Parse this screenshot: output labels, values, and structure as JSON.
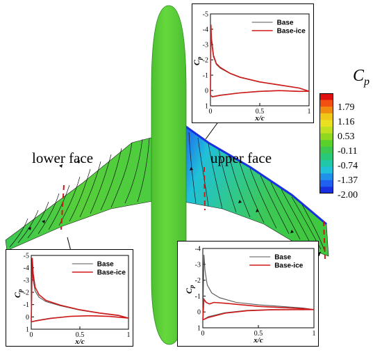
{
  "labels": {
    "lower_face": "lower face",
    "upper_face": "upper face"
  },
  "colorbar": {
    "title": "C",
    "title_sub": "p",
    "ticks": [
      "1.79",
      "1.16",
      "0.53",
      "-0.11",
      "-0.74",
      "-1.37",
      "-2.00"
    ],
    "colors": [
      "#e01010",
      "#f05010",
      "#f08c10",
      "#f0c818",
      "#e8e020",
      "#c0e020",
      "#90d820",
      "#5ad02a",
      "#3cc850",
      "#28c878",
      "#20c8a8",
      "#20c0d8",
      "#2090e8",
      "#2060f0",
      "#1830e0"
    ]
  },
  "colors": {
    "fuselage": "#5fd03a",
    "base": "#555555",
    "base_ice": "#d01818"
  },
  "chart_data": [
    {
      "type": "line",
      "location": "upper wing root",
      "xlabel": "x/c",
      "ylabel": "C_p",
      "x_ticks": [
        "0",
        "0.5",
        "1"
      ],
      "y_ticks": [
        "-5",
        "-4",
        "-3",
        "-2",
        "-1",
        "0",
        "1"
      ],
      "xlim": [
        0,
        1
      ],
      "ylim": [
        1,
        -5
      ],
      "legend": "top-right",
      "series": [
        {
          "name": "Base",
          "upper": [
            [
              0.0,
              0.3
            ],
            [
              0.005,
              -4.1
            ],
            [
              0.01,
              -3.2
            ],
            [
              0.03,
              -2.2
            ],
            [
              0.06,
              -1.7
            ],
            [
              0.1,
              -1.45
            ],
            [
              0.2,
              -1.1
            ],
            [
              0.3,
              -0.85
            ],
            [
              0.5,
              -0.55
            ],
            [
              0.7,
              -0.35
            ],
            [
              0.9,
              -0.15
            ],
            [
              1.0,
              0.05
            ]
          ],
          "lower": [
            [
              0.0,
              0.3
            ],
            [
              0.02,
              0.4
            ],
            [
              0.1,
              0.3
            ],
            [
              0.3,
              0.15
            ],
            [
              0.5,
              0.05
            ],
            [
              0.7,
              0.0
            ],
            [
              0.9,
              0.05
            ],
            [
              1.0,
              0.05
            ]
          ]
        },
        {
          "name": "Base-ice",
          "upper": [
            [
              0.0,
              0.3
            ],
            [
              0.005,
              -4.3
            ],
            [
              0.01,
              -3.4
            ],
            [
              0.03,
              -2.3
            ],
            [
              0.06,
              -1.75
            ],
            [
              0.1,
              -1.5
            ],
            [
              0.2,
              -1.12
            ],
            [
              0.3,
              -0.87
            ],
            [
              0.5,
              -0.56
            ],
            [
              0.7,
              -0.36
            ],
            [
              0.9,
              -0.16
            ],
            [
              1.0,
              0.05
            ]
          ],
          "lower": [
            [
              0.0,
              0.3
            ],
            [
              0.02,
              0.42
            ],
            [
              0.1,
              0.32
            ],
            [
              0.3,
              0.16
            ],
            [
              0.5,
              0.06
            ],
            [
              0.7,
              0.01
            ],
            [
              0.9,
              0.06
            ],
            [
              1.0,
              0.05
            ]
          ]
        }
      ]
    },
    {
      "type": "line",
      "location": "lower wing tip",
      "xlabel": "x/c",
      "ylabel": "C_p",
      "x_ticks": [
        "0",
        "0.5",
        "1"
      ],
      "y_ticks": [
        "-5",
        "-4",
        "-3",
        "-2",
        "-1",
        "0",
        "1"
      ],
      "xlim": [
        0,
        1
      ],
      "ylim": [
        1,
        -5
      ],
      "legend": "top-right",
      "series": [
        {
          "name": "Base",
          "upper": [
            [
              0.0,
              0.4
            ],
            [
              0.01,
              -4.0
            ],
            [
              0.02,
              -3.0
            ],
            [
              0.04,
              -2.1
            ],
            [
              0.08,
              -1.6
            ],
            [
              0.15,
              -1.25
            ],
            [
              0.3,
              -0.9
            ],
            [
              0.5,
              -0.55
            ],
            [
              0.7,
              -0.3
            ],
            [
              0.9,
              -0.1
            ],
            [
              1.0,
              0.1
            ]
          ],
          "lower": [
            [
              0.0,
              0.4
            ],
            [
              0.05,
              0.3
            ],
            [
              0.2,
              0.1
            ],
            [
              0.4,
              -0.05
            ],
            [
              0.6,
              -0.1
            ],
            [
              0.8,
              -0.05
            ],
            [
              1.0,
              0.1
            ]
          ]
        },
        {
          "name": "Base-ice",
          "upper": [
            [
              0.0,
              0.4
            ],
            [
              0.01,
              -4.8
            ],
            [
              0.02,
              -3.5
            ],
            [
              0.04,
              -2.4
            ],
            [
              0.08,
              -1.8
            ],
            [
              0.15,
              -1.35
            ],
            [
              0.3,
              -0.95
            ],
            [
              0.5,
              -0.58
            ],
            [
              0.7,
              -0.32
            ],
            [
              0.9,
              -0.12
            ],
            [
              1.0,
              0.1
            ]
          ],
          "lower": [
            [
              0.0,
              0.4
            ],
            [
              0.05,
              0.32
            ],
            [
              0.2,
              0.12
            ],
            [
              0.4,
              -0.04
            ],
            [
              0.6,
              -0.09
            ],
            [
              0.8,
              -0.04
            ],
            [
              1.0,
              0.1
            ]
          ]
        }
      ]
    },
    {
      "type": "line",
      "location": "upper wing tip",
      "xlabel": "x/c",
      "ylabel": "C_p",
      "x_ticks": [
        "0",
        "0.5",
        "1"
      ],
      "y_ticks": [
        "-4",
        "-3",
        "-2",
        "-1",
        "0",
        "1"
      ],
      "xlim": [
        0,
        1
      ],
      "ylim": [
        1,
        -4
      ],
      "legend": "top-right",
      "series": [
        {
          "name": "Base",
          "upper": [
            [
              0.0,
              0.5
            ],
            [
              0.01,
              -3.6
            ],
            [
              0.02,
              -2.6
            ],
            [
              0.04,
              -1.7
            ],
            [
              0.08,
              -1.2
            ],
            [
              0.15,
              -0.9
            ],
            [
              0.3,
              -0.6
            ],
            [
              0.5,
              -0.45
            ],
            [
              0.7,
              -0.35
            ],
            [
              0.9,
              -0.25
            ],
            [
              1.0,
              -0.15
            ]
          ],
          "lower": [
            [
              0.0,
              0.5
            ],
            [
              0.05,
              0.3
            ],
            [
              0.2,
              0.05
            ],
            [
              0.4,
              -0.1
            ],
            [
              0.6,
              -0.15
            ],
            [
              0.8,
              -0.15
            ],
            [
              1.0,
              -0.15
            ]
          ]
        },
        {
          "name": "Base-ice",
          "upper": [
            [
              0.0,
              0.5
            ],
            [
              0.01,
              -0.8
            ],
            [
              0.03,
              -0.6
            ],
            [
              0.06,
              -0.5
            ],
            [
              0.1,
              -0.6
            ],
            [
              0.2,
              -0.55
            ],
            [
              0.35,
              -0.45
            ],
            [
              0.5,
              -0.35
            ],
            [
              0.7,
              -0.28
            ],
            [
              0.9,
              -0.2
            ],
            [
              1.0,
              -0.15
            ]
          ],
          "lower": [
            [
              0.0,
              0.5
            ],
            [
              0.05,
              0.35
            ],
            [
              0.2,
              0.08
            ],
            [
              0.4,
              -0.08
            ],
            [
              0.6,
              -0.13
            ],
            [
              0.8,
              -0.14
            ],
            [
              1.0,
              -0.15
            ]
          ]
        }
      ]
    }
  ]
}
